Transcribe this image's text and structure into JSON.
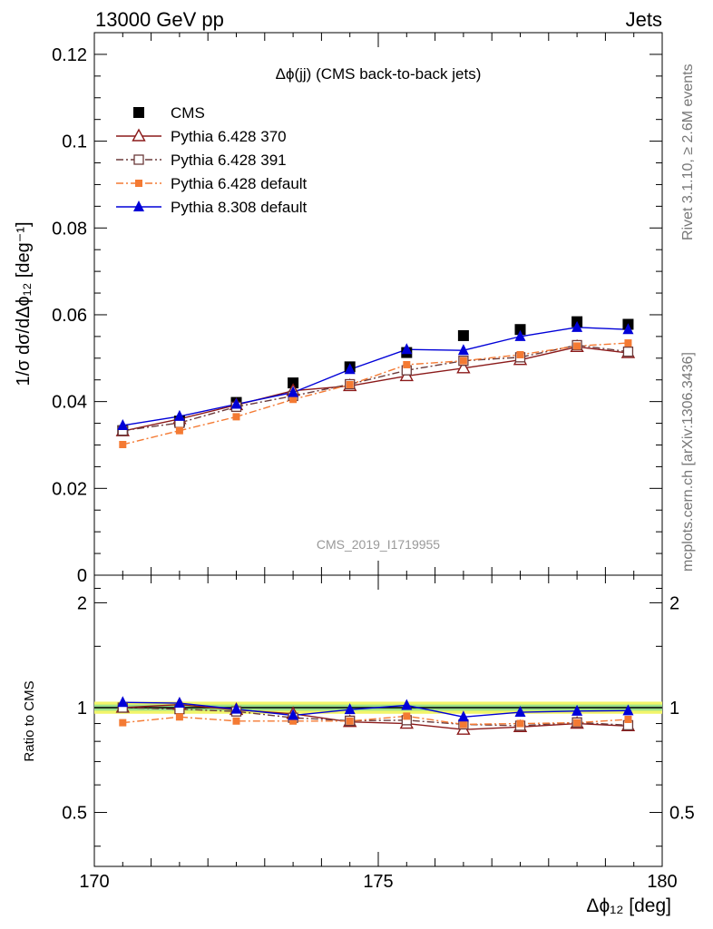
{
  "header": {
    "left": "13000 GeV pp",
    "right": "Jets"
  },
  "side_labels": {
    "rivet": "Rivet 3.1.10, ≥ 2.6M events",
    "mcplots": "mcplots.cern.ch [arXiv:1306.3436]"
  },
  "watermark": "CMS_2019_I1719955",
  "colors": {
    "cms": "#000000",
    "py370": "#8b1a1a",
    "py391": "#6b3a3a",
    "py6def": "#f47a33",
    "py8def": "#0000d8",
    "band_yellow": "#f2f56a",
    "band_green": "#9be08a"
  },
  "chart_data": [
    {
      "type": "scatter",
      "panel": "main",
      "title": "Δϕ(jj) (CMS back-to-back jets)",
      "ylabel": "1/σ dσ/dΔϕ₁₂ [deg⁻¹]",
      "xlim": [
        170,
        180
      ],
      "ylim": [
        0,
        0.125
      ],
      "yticks": [
        "0",
        "0.02",
        "0.04",
        "0.06",
        "0.08",
        "0.1",
        "0.12"
      ],
      "ytick_values": [
        0,
        0.02,
        0.04,
        0.06,
        0.08,
        0.1,
        0.12
      ],
      "legend_position": "top-left",
      "x": [
        170.5,
        171.5,
        172.5,
        173.5,
        174.5,
        175.5,
        176.5,
        177.5,
        178.5,
        179.4
      ],
      "series": [
        {
          "name": "CMS",
          "key": "cms",
          "marker": "square",
          "values": [
            0.0333,
            0.0355,
            0.0398,
            0.0443,
            0.048,
            0.0513,
            0.0552,
            0.0566,
            0.0584,
            0.0578
          ]
        },
        {
          "name": "Pythia 6.428 370",
          "key": "py370",
          "marker": "triangle-open",
          "line": "solid",
          "values": [
            0.0332,
            0.036,
            0.0392,
            0.0425,
            0.0436,
            0.0459,
            0.0477,
            0.0496,
            0.0526,
            0.0512
          ]
        },
        {
          "name": "Pythia 6.428 391",
          "key": "py391",
          "marker": "square-open",
          "line": "dashdot",
          "values": [
            0.0333,
            0.0351,
            0.0388,
            0.0413,
            0.044,
            0.0472,
            0.0494,
            0.0502,
            0.053,
            0.0515
          ]
        },
        {
          "name": "Pythia 6.428 default",
          "key": "py6def",
          "marker": "square-small",
          "line": "dashdot",
          "values": [
            0.0301,
            0.0333,
            0.0365,
            0.0405,
            0.0439,
            0.0485,
            0.0494,
            0.0508,
            0.0528,
            0.0535
          ]
        },
        {
          "name": "Pythia 8.308 default",
          "key": "py8def",
          "marker": "triangle",
          "line": "solid",
          "values": [
            0.0345,
            0.0366,
            0.0394,
            0.0421,
            0.0474,
            0.052,
            0.0518,
            0.055,
            0.0571,
            0.0566
          ]
        }
      ]
    },
    {
      "type": "line",
      "panel": "ratio",
      "ylabel": "Ratio to CMS",
      "xlabel": "Δϕ₁₂ [deg]",
      "xticks": [
        "170",
        "175",
        "180"
      ],
      "xtick_values": [
        170,
        175,
        180
      ],
      "yticks": [
        "0.5",
        "1",
        "2"
      ],
      "ytick_values": [
        0.5,
        1,
        2
      ],
      "xlim": [
        170,
        180
      ],
      "ylim": [
        0.35,
        2.4
      ],
      "scale": "log",
      "x": [
        170.5,
        171.5,
        172.5,
        173.5,
        174.5,
        175.5,
        176.5,
        177.5,
        178.5,
        179.4
      ],
      "series": [
        {
          "key": "py370",
          "marker": "triangle-open",
          "line": "solid",
          "values": [
            1.0,
            1.02,
            0.985,
            0.96,
            0.91,
            0.9,
            0.865,
            0.88,
            0.9,
            0.885
          ]
        },
        {
          "key": "py391",
          "marker": "square-open",
          "line": "dashdot",
          "values": [
            1.0,
            0.99,
            0.975,
            0.935,
            0.917,
            0.92,
            0.895,
            0.887,
            0.907,
            0.89
          ]
        },
        {
          "key": "py6def",
          "marker": "square-small",
          "line": "dashdot",
          "values": [
            0.905,
            0.94,
            0.915,
            0.915,
            0.915,
            0.945,
            0.895,
            0.9,
            0.905,
            0.925
          ]
        },
        {
          "key": "py8def",
          "marker": "triangle",
          "line": "solid",
          "values": [
            1.035,
            1.03,
            0.99,
            0.95,
            0.987,
            1.015,
            0.94,
            0.97,
            0.977,
            0.98
          ]
        }
      ],
      "uncertainty_band": {
        "yellow": [
          0.96,
          1.04
        ],
        "green": [
          0.98,
          1.02
        ]
      }
    }
  ]
}
